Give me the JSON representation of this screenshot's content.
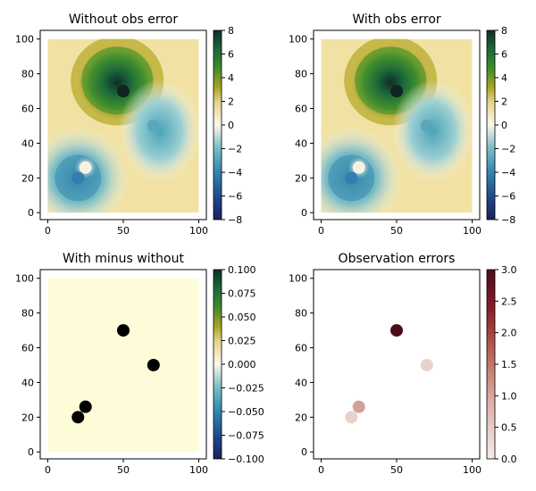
{
  "chart_data": [
    {
      "type": "heatmap",
      "title": "Without obs error",
      "xlim": [
        0,
        100
      ],
      "ylim": [
        0,
        100
      ],
      "xticks": [
        "0",
        "50",
        "100"
      ],
      "yticks": [
        "0",
        "20",
        "40",
        "60",
        "80",
        "100"
      ],
      "colormap": "gist_earth-like diverging (blue-white-gold-green)",
      "colorbar": {
        "range": [
          -8,
          8
        ],
        "ticks": [
          "8",
          "6",
          "4",
          "2",
          "0",
          "−2",
          "−4",
          "−6",
          "−8"
        ]
      },
      "points": [
        {
          "x": 20,
          "y": 20,
          "value": -6.0
        },
        {
          "x": 25,
          "y": 26,
          "value": -1.0
        },
        {
          "x": 50,
          "y": 70,
          "value": 8.0
        },
        {
          "x": 70,
          "y": 50,
          "value": -4.0
        }
      ]
    },
    {
      "type": "heatmap",
      "title": "With obs error",
      "xlim": [
        0,
        100
      ],
      "ylim": [
        0,
        100
      ],
      "xticks": [
        "0",
        "50",
        "100"
      ],
      "yticks": [
        "0",
        "20",
        "40",
        "60",
        "80",
        "100"
      ],
      "colormap": "gist_earth-like diverging (blue-white-gold-green)",
      "colorbar": {
        "range": [
          -8,
          8
        ],
        "ticks": [
          "8",
          "6",
          "4",
          "2",
          "0",
          "−2",
          "−4",
          "−6",
          "−8"
        ]
      },
      "points": [
        {
          "x": 20,
          "y": 20,
          "value": -6.0
        },
        {
          "x": 25,
          "y": 26,
          "value": -1.0
        },
        {
          "x": 50,
          "y": 70,
          "value": 8.0
        },
        {
          "x": 70,
          "y": 50,
          "value": -4.0
        }
      ]
    },
    {
      "type": "heatmap",
      "title": "With minus without",
      "xlim": [
        0,
        100
      ],
      "ylim": [
        0,
        100
      ],
      "xticks": [
        "0",
        "50",
        "100"
      ],
      "yticks": [
        "0",
        "20",
        "40",
        "60",
        "80",
        "100"
      ],
      "fill_value": 0.0,
      "colorbar": {
        "range": [
          -0.1,
          0.1
        ],
        "ticks": [
          "0.100",
          "0.075",
          "0.050",
          "0.025",
          "0.000",
          "−0.025",
          "−0.050",
          "−0.075",
          "−0.100"
        ]
      },
      "points": [
        {
          "x": 20,
          "y": 20
        },
        {
          "x": 25,
          "y": 26
        },
        {
          "x": 50,
          "y": 70
        },
        {
          "x": 70,
          "y": 50
        }
      ]
    },
    {
      "type": "scatter",
      "title": "Observation errors",
      "xlim": [
        0,
        100
      ],
      "ylim": [
        0,
        100
      ],
      "xticks": [
        "0",
        "50",
        "100"
      ],
      "yticks": [
        "0",
        "20",
        "40",
        "60",
        "80",
        "100"
      ],
      "colorbar": {
        "range": [
          0,
          3
        ],
        "ticks": [
          "3.0",
          "2.5",
          "2.0",
          "1.5",
          "1.0",
          "0.5",
          "0.0"
        ]
      },
      "points": [
        {
          "x": 20,
          "y": 20,
          "error": 0.3
        },
        {
          "x": 25,
          "y": 26,
          "error": 0.6
        },
        {
          "x": 50,
          "y": 70,
          "error": 3.0
        },
        {
          "x": 70,
          "y": 50,
          "error": 0.3
        }
      ]
    }
  ]
}
